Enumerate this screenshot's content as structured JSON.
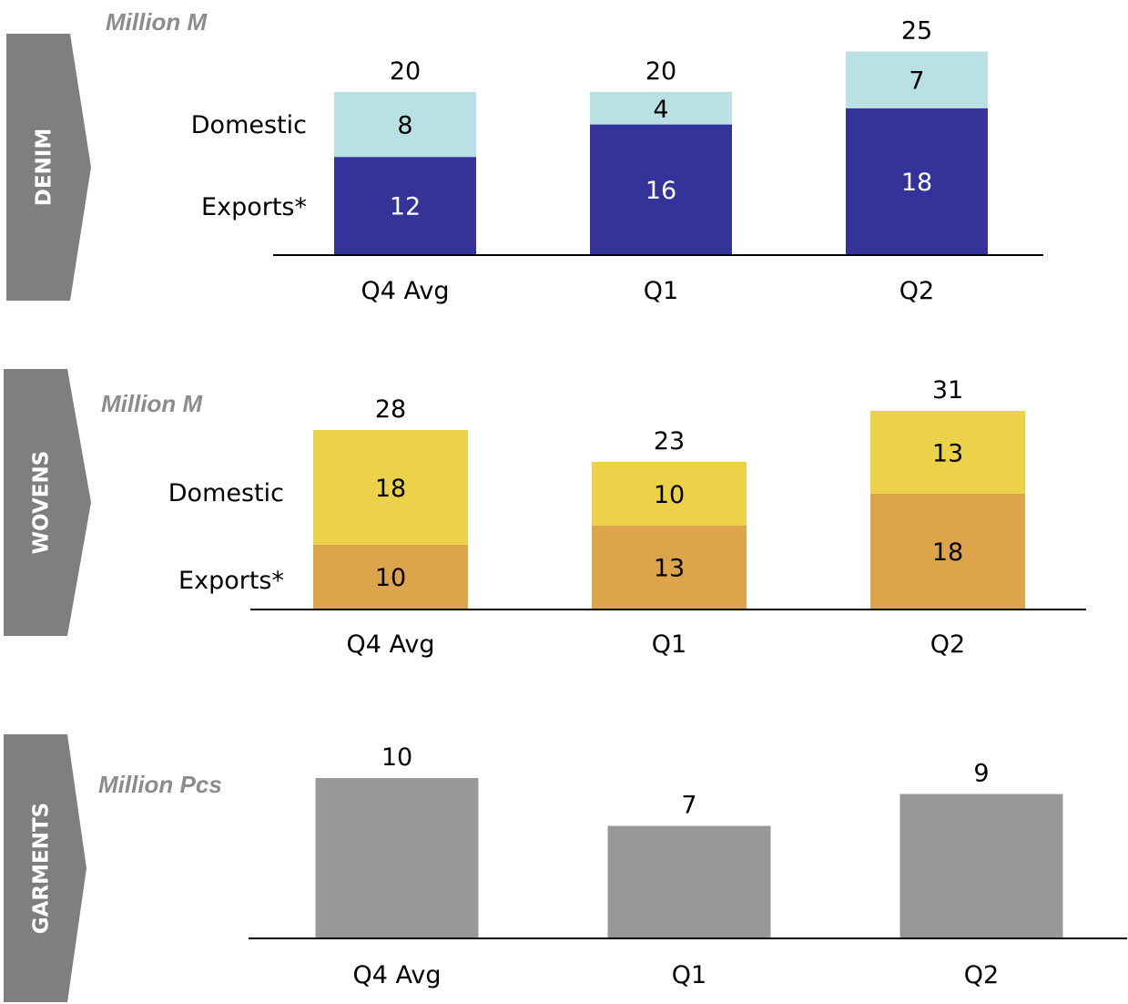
{
  "chart_data": [
    {
      "type": "bar",
      "stacked": true,
      "section_label": "DENIM",
      "unit_label": "Million M",
      "categories": [
        "Q4 Avg",
        "Q1",
        "Q2"
      ],
      "series": [
        {
          "name": "Exports*",
          "values": [
            12,
            16,
            18
          ],
          "color": "#33339a",
          "label_color": "#ffffff"
        },
        {
          "name": "Domestic",
          "values": [
            8,
            4,
            7
          ],
          "color": "#b9e1e4",
          "label_color": "#000000"
        }
      ],
      "totals": [
        20,
        20,
        25
      ]
    },
    {
      "type": "bar",
      "stacked": true,
      "section_label": "WOVENS",
      "unit_label": "Million M",
      "categories": [
        "Q4 Avg",
        "Q1",
        "Q2"
      ],
      "series": [
        {
          "name": "Exports*",
          "values": [
            10,
            13,
            18
          ],
          "color": "#dca44b",
          "label_color": "#000000"
        },
        {
          "name": "Domestic",
          "values": [
            18,
            10,
            13
          ],
          "color": "#ecd248",
          "label_color": "#000000"
        }
      ],
      "totals": [
        28,
        23,
        31
      ]
    },
    {
      "type": "bar",
      "stacked": false,
      "section_label": "GARMENTS",
      "unit_label": "Million Pcs",
      "categories": [
        "Q4 Avg",
        "Q1",
        "Q2"
      ],
      "series": [
        {
          "values": [
            10,
            7,
            9
          ],
          "color": "#989898",
          "label_color": "#000000"
        }
      ],
      "totals": [
        10,
        7,
        9
      ]
    }
  ],
  "colors": {
    "arrow": "#7f7f7f",
    "axis": "#000000",
    "unit_text": "#8c8c8c"
  }
}
